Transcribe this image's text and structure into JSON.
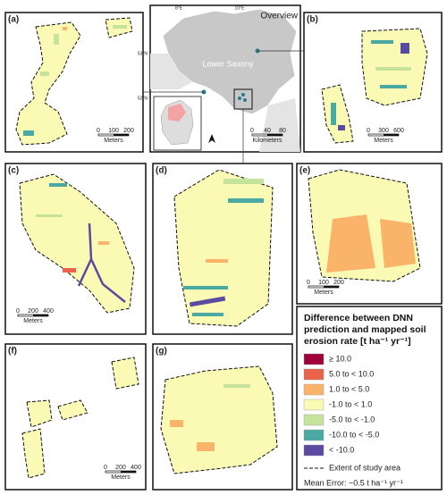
{
  "panels": [
    {
      "label": "(a)",
      "scale": {
        "ticks": [
          0,
          100,
          200
        ],
        "unit": "Meters"
      }
    },
    {
      "label": "(b)",
      "scale": {
        "ticks": [
          0,
          300,
          600
        ],
        "unit": "Meters"
      }
    },
    {
      "label": "(c)",
      "scale": {
        "ticks": [
          0,
          200,
          400
        ],
        "unit": "Meters"
      }
    },
    {
      "label": "(d)"
    },
    {
      "label": "(e)",
      "scale": {
        "ticks": [
          0,
          100,
          200
        ],
        "unit": "Meters"
      }
    },
    {
      "label": "(f)",
      "scale": {
        "ticks": [
          0,
          200,
          400
        ],
        "unit": "Meters"
      }
    },
    {
      "label": "(g)"
    }
  ],
  "overview": {
    "title": "Overview",
    "region": "Lower Saxony",
    "lon_labels": [
      "8°E",
      "10°E"
    ],
    "lat_labels": [
      "53°N",
      "52°N"
    ],
    "scale": {
      "ticks": [
        0,
        40,
        80
      ],
      "unit": "Kilometers"
    }
  },
  "legend": {
    "title": "Difference between DNN prediction and mapped soil erosion rate [t ha⁻¹ yr⁻¹]",
    "items": [
      {
        "label": "≥ 10.0",
        "color": "#a0003a"
      },
      {
        "label": "5.0 to < 10.0",
        "color": "#e8634a"
      },
      {
        "label": "1.0 to < 5.0",
        "color": "#f9b46a"
      },
      {
        "label": "-1.0 to < 1.0",
        "color": "#fafab4"
      },
      {
        "label": "-5.0 to < -1.0",
        "color": "#c5e39b"
      },
      {
        "label": "-10.0 to < -5.0",
        "color": "#4aa9a2"
      },
      {
        "label": "< -10.0",
        "color": "#5b4ba0"
      }
    ],
    "extent": "Extent of study area",
    "mean_error": "Mean Error: −0.5 t ha⁻¹ yr⁻¹"
  }
}
